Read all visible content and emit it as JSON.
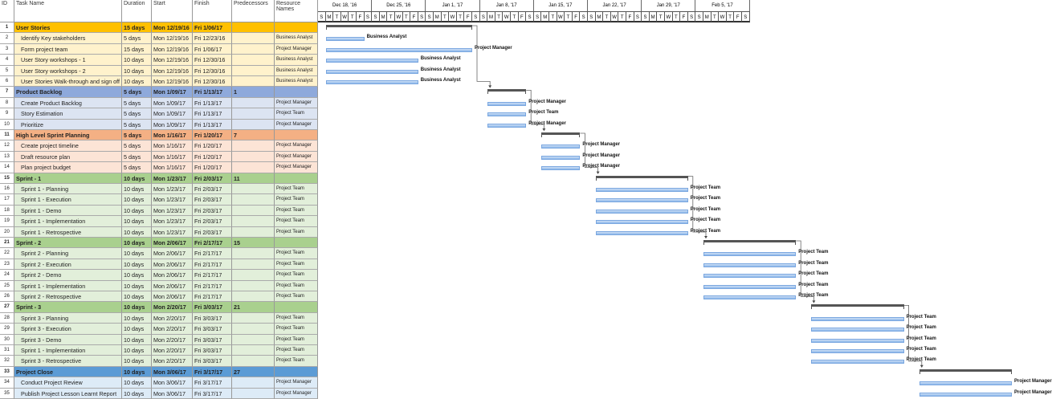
{
  "columns": {
    "id": "ID",
    "task": "Task Name",
    "duration": "Duration",
    "start": "Start",
    "finish": "Finish",
    "pred": "Predecessors",
    "res": "Resource Names"
  },
  "timescale": {
    "weeks": [
      "Dec 18, '16",
      "Dec 25, '16",
      "Jan 1, '17",
      "Jan 8, '17",
      "Jan 15, '17",
      "Jan 22, '17",
      "Jan 29, '17",
      "Feb 5, '17"
    ],
    "days": [
      "S",
      "M",
      "T",
      "W",
      "T",
      "F",
      "S"
    ]
  },
  "colors": {
    "orange_sum": "#FFC000",
    "orange_child": "#FFF2CC",
    "blue_sum": "#8EA9DB",
    "blue_child": "#DCE4F2",
    "peach_sum": "#F4B084",
    "peach_child": "#FCE4D6",
    "green_sum": "#A9D08E",
    "green_child": "#E2EFDA",
    "close_sum": "#5B9BD5",
    "close_child": "#DDEBF7"
  },
  "tasks": [
    {
      "id": "1",
      "name": "User Stories",
      "dur": "15 days",
      "start": "Mon 12/19/16",
      "finish": "Fri 1/06/17",
      "pred": "",
      "res": "",
      "sum": true,
      "g": "orange"
    },
    {
      "id": "2",
      "name": "Identify Key stakeholders",
      "dur": "5 days",
      "start": "Mon 12/19/16",
      "finish": "Fri 12/23/16",
      "pred": "",
      "res": "Business Analyst",
      "g": "orange"
    },
    {
      "id": "3",
      "name": "Form project team",
      "dur": "15 days",
      "start": "Mon 12/19/16",
      "finish": "Fri 1/06/17",
      "pred": "",
      "res": "Project Manager",
      "g": "orange"
    },
    {
      "id": "4",
      "name": "User Story workshops - 1",
      "dur": "10 days",
      "start": "Mon 12/19/16",
      "finish": "Fri 12/30/16",
      "pred": "",
      "res": "Business Analyst",
      "g": "orange"
    },
    {
      "id": "5",
      "name": "User Story workshops - 2",
      "dur": "10 days",
      "start": "Mon 12/19/16",
      "finish": "Fri 12/30/16",
      "pred": "",
      "res": "Business Analyst",
      "g": "orange"
    },
    {
      "id": "6",
      "name": "User Stories Walk-through and sign off",
      "dur": "10 days",
      "start": "Mon 12/19/16",
      "finish": "Fri 12/30/16",
      "pred": "",
      "res": "Business Analyst",
      "g": "orange"
    },
    {
      "id": "7",
      "name": "Product Backlog",
      "dur": "5 days",
      "start": "Mon 1/09/17",
      "finish": "Fri 1/13/17",
      "pred": "1",
      "res": "",
      "sum": true,
      "g": "blue"
    },
    {
      "id": "8",
      "name": "Create Product Backlog",
      "dur": "5 days",
      "start": "Mon 1/09/17",
      "finish": "Fri 1/13/17",
      "pred": "",
      "res": "Project Manager",
      "g": "blue"
    },
    {
      "id": "9",
      "name": "Story Estimation",
      "dur": "5 days",
      "start": "Mon 1/09/17",
      "finish": "Fri 1/13/17",
      "pred": "",
      "res": "Project Team",
      "g": "blue"
    },
    {
      "id": "10",
      "name": "Prioritize",
      "dur": "5 days",
      "start": "Mon 1/09/17",
      "finish": "Fri 1/13/17",
      "pred": "",
      "res": "Project Manager",
      "g": "blue"
    },
    {
      "id": "11",
      "name": "High Level Sprint Planning",
      "dur": "5 days",
      "start": "Mon 1/16/17",
      "finish": "Fri 1/20/17",
      "pred": "7",
      "res": "",
      "sum": true,
      "g": "peach"
    },
    {
      "id": "12",
      "name": "Create project timeline",
      "dur": "5 days",
      "start": "Mon 1/16/17",
      "finish": "Fri 1/20/17",
      "pred": "",
      "res": "Project Manager",
      "g": "peach"
    },
    {
      "id": "13",
      "name": "Draft resource plan",
      "dur": "5 days",
      "start": "Mon 1/16/17",
      "finish": "Fri 1/20/17",
      "pred": "",
      "res": "Project Manager",
      "g": "peach"
    },
    {
      "id": "14",
      "name": "Plan project budget",
      "dur": "5 days",
      "start": "Mon 1/16/17",
      "finish": "Fri 1/20/17",
      "pred": "",
      "res": "Project Manager",
      "g": "peach"
    },
    {
      "id": "15",
      "name": "Sprint - 1",
      "dur": "10 days",
      "start": "Mon 1/23/17",
      "finish": "Fri 2/03/17",
      "pred": "11",
      "res": "",
      "sum": true,
      "g": "green"
    },
    {
      "id": "16",
      "name": "Sprint 1 - Planning",
      "dur": "10 days",
      "start": "Mon 1/23/17",
      "finish": "Fri 2/03/17",
      "pred": "",
      "res": "Project Team",
      "g": "green"
    },
    {
      "id": "17",
      "name": "Sprint 1 - Execution",
      "dur": "10 days",
      "start": "Mon 1/23/17",
      "finish": "Fri 2/03/17",
      "pred": "",
      "res": "Project Team",
      "g": "green"
    },
    {
      "id": "18",
      "name": "Sprint 1 - Demo",
      "dur": "10 days",
      "start": "Mon 1/23/17",
      "finish": "Fri 2/03/17",
      "pred": "",
      "res": "Project Team",
      "g": "green"
    },
    {
      "id": "19",
      "name": "Sprint 1 - Implementation",
      "dur": "10 days",
      "start": "Mon 1/23/17",
      "finish": "Fri 2/03/17",
      "pred": "",
      "res": "Project Team",
      "g": "green"
    },
    {
      "id": "20",
      "name": "Sprint 1 - Retrospective",
      "dur": "10 days",
      "start": "Mon 1/23/17",
      "finish": "Fri 2/03/17",
      "pred": "",
      "res": "Project Team",
      "g": "green"
    },
    {
      "id": "21",
      "name": "Sprint - 2",
      "dur": "10 days",
      "start": "Mon 2/06/17",
      "finish": "Fri 2/17/17",
      "pred": "15",
      "res": "",
      "sum": true,
      "g": "green"
    },
    {
      "id": "22",
      "name": "Sprint 2 - Planning",
      "dur": "10 days",
      "start": "Mon 2/06/17",
      "finish": "Fri 2/17/17",
      "pred": "",
      "res": "Project Team",
      "g": "green"
    },
    {
      "id": "23",
      "name": "Sprint 2 - Execution",
      "dur": "10 days",
      "start": "Mon 2/06/17",
      "finish": "Fri 2/17/17",
      "pred": "",
      "res": "Project Team",
      "g": "green"
    },
    {
      "id": "24",
      "name": "Sprint 2 - Demo",
      "dur": "10 days",
      "start": "Mon 2/06/17",
      "finish": "Fri 2/17/17",
      "pred": "",
      "res": "Project Team",
      "g": "green"
    },
    {
      "id": "25",
      "name": "Sprint 1 - Implementation",
      "dur": "10 days",
      "start": "Mon 2/06/17",
      "finish": "Fri 2/17/17",
      "pred": "",
      "res": "Project Team",
      "g": "green"
    },
    {
      "id": "26",
      "name": "Sprint 2 - Retrospective",
      "dur": "10 days",
      "start": "Mon 2/06/17",
      "finish": "Fri 2/17/17",
      "pred": "",
      "res": "Project Team",
      "g": "green"
    },
    {
      "id": "27",
      "name": "Sprint - 3",
      "dur": "10 days",
      "start": "Mon 2/20/17",
      "finish": "Fri 3/03/17",
      "pred": "21",
      "res": "",
      "sum": true,
      "g": "green"
    },
    {
      "id": "28",
      "name": "Sprint 3 - Planning",
      "dur": "10 days",
      "start": "Mon 2/20/17",
      "finish": "Fri 3/03/17",
      "pred": "",
      "res": "Project Team",
      "g": "green"
    },
    {
      "id": "29",
      "name": "Sprint 3 - Execution",
      "dur": "10 days",
      "start": "Mon 2/20/17",
      "finish": "Fri 3/03/17",
      "pred": "",
      "res": "Project Team",
      "g": "green"
    },
    {
      "id": "30",
      "name": "Sprint 3 - Demo",
      "dur": "10 days",
      "start": "Mon 2/20/17",
      "finish": "Fri 3/03/17",
      "pred": "",
      "res": "Project Team",
      "g": "green"
    },
    {
      "id": "31",
      "name": "Sprint 1 - Implementation",
      "dur": "10 days",
      "start": "Mon 2/20/17",
      "finish": "Fri 3/03/17",
      "pred": "",
      "res": "Project Team",
      "g": "green"
    },
    {
      "id": "32",
      "name": "Sprint 3 - Retrospective",
      "dur": "10 days",
      "start": "Mon 2/20/17",
      "finish": "Fri 3/03/17",
      "pred": "",
      "res": "Project Team",
      "g": "green"
    },
    {
      "id": "33",
      "name": "Project Close",
      "dur": "10 days",
      "start": "Mon 3/06/17",
      "finish": "Fri 3/17/17",
      "pred": "27",
      "res": "",
      "sum": true,
      "g": "close"
    },
    {
      "id": "34",
      "name": "Conduct Project Review",
      "dur": "10 days",
      "start": "Mon 3/06/17",
      "finish": "Fri 3/17/17",
      "pred": "",
      "res": "Project Manager",
      "g": "close"
    },
    {
      "id": "35",
      "name": "Publish Project Lesson Learnt Report",
      "dur": "10 days",
      "start": "Mon 3/06/17",
      "finish": "Fri 3/17/17",
      "pred": "",
      "res": "Project Manager",
      "g": "close"
    }
  ]
}
